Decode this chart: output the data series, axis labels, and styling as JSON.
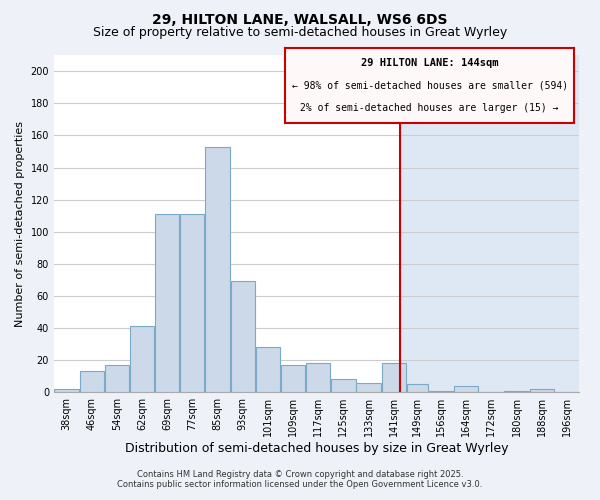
{
  "title_line1": "29, HILTON LANE, WALSALL, WS6 6DS",
  "title_line2": "Size of property relative to semi-detached houses in Great Wyrley",
  "xlabel": "Distribution of semi-detached houses by size in Great Wyrley",
  "ylabel": "Number of semi-detached properties",
  "bar_color": "#ccd9e8",
  "bar_edge_color": "#7aaac8",
  "bin_edges": [
    34,
    42,
    50,
    58,
    66,
    74,
    82,
    90,
    98,
    106,
    114,
    122,
    130,
    138,
    146,
    153,
    161,
    169,
    177,
    185,
    193,
    201
  ],
  "bin_labels": [
    "38sqm",
    "46sqm",
    "54sqm",
    "62sqm",
    "69sqm",
    "77sqm",
    "85sqm",
    "93sqm",
    "101sqm",
    "109sqm",
    "117sqm",
    "125sqm",
    "133sqm",
    "141sqm",
    "149sqm",
    "156sqm",
    "164sqm",
    "172sqm",
    "180sqm",
    "188sqm",
    "196sqm"
  ],
  "counts": [
    2,
    13,
    17,
    41,
    111,
    111,
    153,
    69,
    28,
    17,
    18,
    8,
    6,
    18,
    5,
    1,
    4,
    0,
    1,
    2,
    0
  ],
  "vline_x": 144,
  "vline_color": "#cc0000",
  "ylim": [
    0,
    210
  ],
  "yticks": [
    0,
    20,
    40,
    60,
    80,
    100,
    120,
    140,
    160,
    180,
    200
  ],
  "annotation_title": "29 HILTON LANE: 144sqm",
  "annotation_line1": "← 98% of semi-detached houses are smaller (594)",
  "annotation_line2": "2% of semi-detached houses are larger (15) →",
  "annotation_box_facecolor": "#fff8f8",
  "annotation_box_edgecolor": "#cc0000",
  "footnote1": "Contains HM Land Registry data © Crown copyright and database right 2025.",
  "footnote2": "Contains public sector information licensed under the Open Government Licence v3.0.",
  "bg_color": "#eef2f8",
  "plot_bg_left": "#ffffff",
  "plot_bg_right": "#dde8f4",
  "grid_color": "#cccccc",
  "title_fontsize": 10,
  "subtitle_fontsize": 9,
  "axis_label_fontsize": 8,
  "tick_fontsize": 7,
  "footnote_fontsize": 6
}
